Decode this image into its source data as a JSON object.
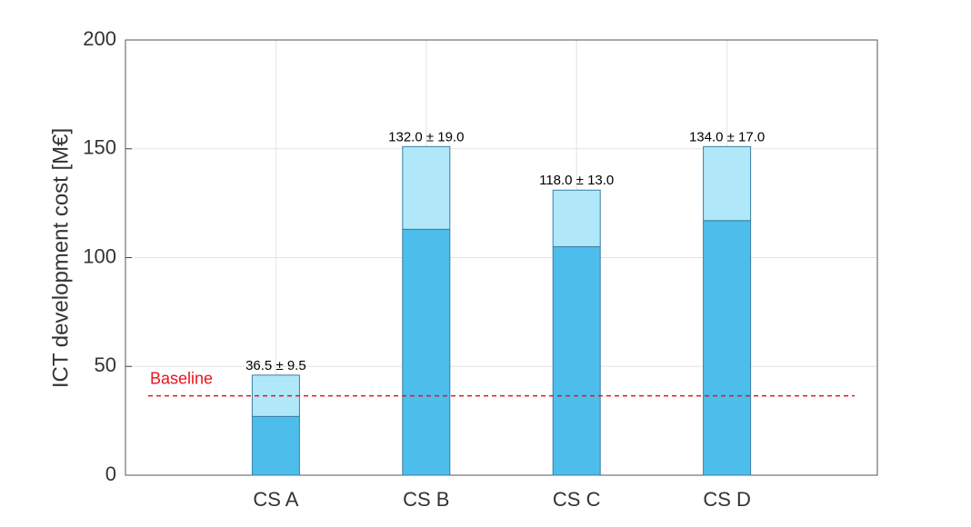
{
  "chart_data": {
    "type": "bar",
    "y_label": "ICT development cost [M€]",
    "categories": [
      "CS A",
      "CS B",
      "CS C",
      "CS D"
    ],
    "values": [
      36.5,
      132.0,
      118.0,
      134.0
    ],
    "errors": [
      9.5,
      19.0,
      13.0,
      17.0
    ],
    "value_labels": [
      "36.5 ± 9.5",
      "132.0 ± 19.0",
      "118.0 ± 13.0",
      "134.0 ± 17.0"
    ],
    "colors": {
      "lower": "#4dbeeb",
      "upper": "#b0e8fa"
    },
    "baseline": {
      "label": "Baseline",
      "value": 36.5,
      "color": "#e8141b"
    },
    "ylim": [
      0,
      200
    ],
    "yticks": [
      0,
      50,
      100,
      150,
      200
    ],
    "grid": true
  }
}
